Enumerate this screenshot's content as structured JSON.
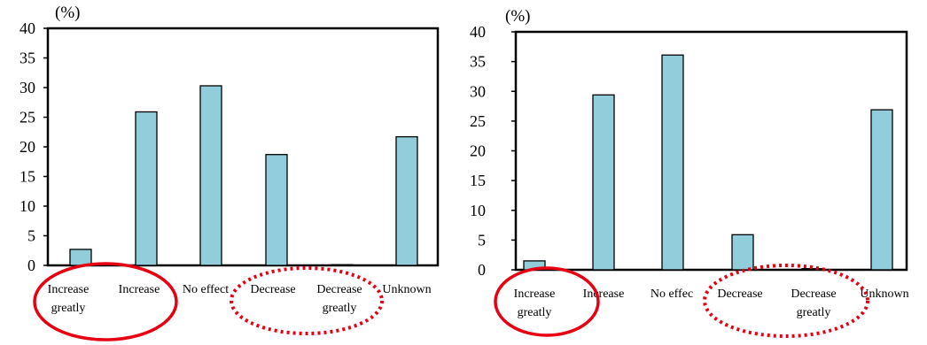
{
  "chart_data": [
    {
      "type": "bar",
      "ylabel": "(%)",
      "ylim": [
        0,
        40
      ],
      "yticks": [
        "0",
        "5",
        "10",
        "15",
        "20",
        "25",
        "30",
        "35",
        "40"
      ],
      "categories": [
        [
          "Increase",
          "greatly"
        ],
        [
          "Increase"
        ],
        [
          "No effect"
        ],
        [
          "Decrease"
        ],
        [
          "Decrease",
          "greatly"
        ],
        [
          "Unknown"
        ]
      ],
      "values": [
        2.7,
        25.9,
        30.3,
        18.7,
        0.1,
        21.7
      ],
      "grid": false,
      "bar_color": "#92cddc"
    },
    {
      "type": "bar",
      "ylabel": "(%)",
      "ylim": [
        0,
        40
      ],
      "yticks": [
        "0",
        "5",
        "10",
        "15",
        "20",
        "25",
        "30",
        "35",
        "40"
      ],
      "categories": [
        [
          "Increase",
          "greatly"
        ],
        [
          "Increase"
        ],
        [
          "No effec"
        ],
        [
          "Decrease"
        ],
        [
          "Decrease",
          "greatly"
        ],
        [
          "Unknown"
        ]
      ],
      "values": [
        1.5,
        29.4,
        36.1,
        5.9,
        0.2,
        26.9
      ],
      "grid": false,
      "bar_color": "#92cddc"
    }
  ],
  "highlight_colors": {
    "solid": "#e60012",
    "dotted": "#e60012"
  }
}
